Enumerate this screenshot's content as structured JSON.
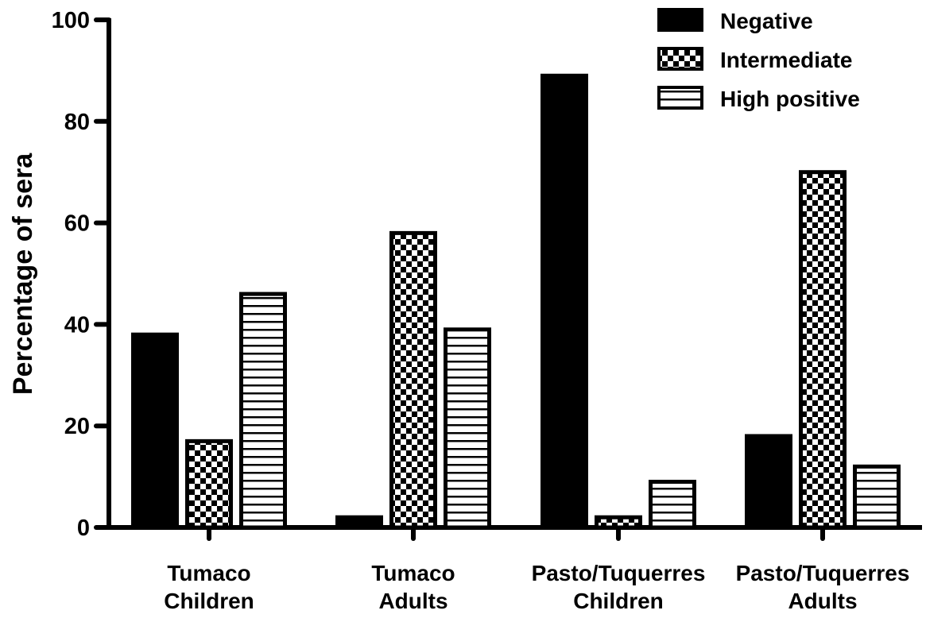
{
  "chart_data": {
    "type": "bar",
    "title": "",
    "xlabel": "",
    "ylabel": "Percentage of sera",
    "ylim": [
      0,
      100
    ],
    "yticks": [
      0,
      20,
      40,
      60,
      80,
      100
    ],
    "grid": false,
    "legend_position": "top-right",
    "categories": [
      [
        "Tumaco",
        "Children"
      ],
      [
        "Tumaco",
        "Adults"
      ],
      [
        "Pasto/Tuquerres",
        "Children"
      ],
      [
        "Pasto/Tuquerres",
        "Adults"
      ]
    ],
    "series": [
      {
        "name": "Negative",
        "pattern": "solid",
        "values": [
          38,
          2,
          89,
          18
        ]
      },
      {
        "name": "Intermediate",
        "pattern": "checker",
        "values": [
          17,
          58,
          2,
          70
        ]
      },
      {
        "name": "High positive",
        "pattern": "hstripes",
        "values": [
          46,
          39,
          9,
          12
        ]
      }
    ],
    "colors": {
      "ink": "#000000",
      "paper": "#ffffff"
    }
  }
}
